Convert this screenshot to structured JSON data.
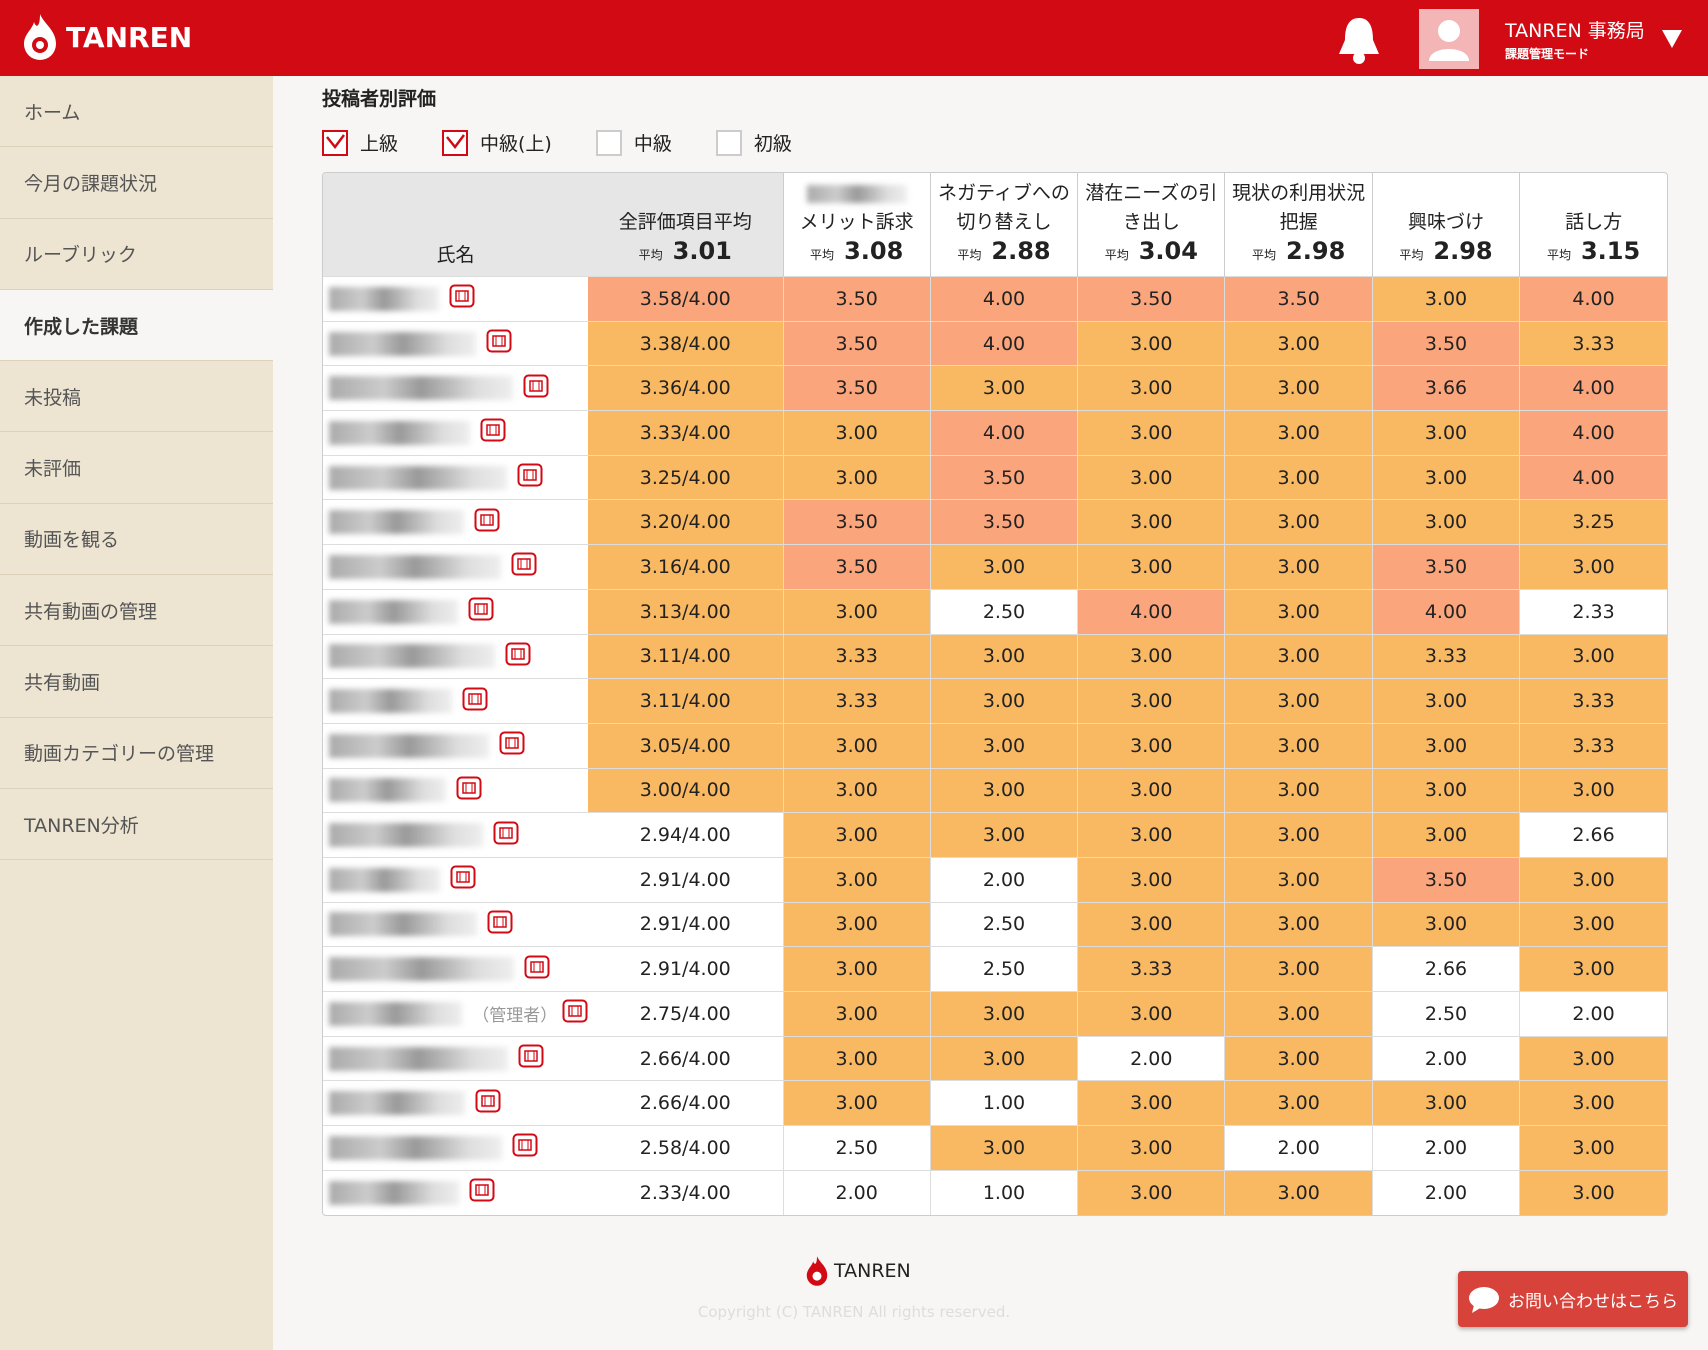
{
  "header": {
    "logo": "TANREN",
    "user_name": "TANREN 事務局",
    "user_mode": "課題管理モード"
  },
  "sidebar": {
    "items": [
      "ホーム",
      "今月の課題状況",
      "ルーブリック",
      "作成した課題",
      "未投稿",
      "未評価",
      "動画を観る",
      "共有動画の管理",
      "共有動画",
      "動画カテゴリーの管理",
      "TANREN分析"
    ],
    "active": 3
  },
  "section_title": "投稿者別評価",
  "filters": [
    {
      "label": "上級",
      "checked": true
    },
    {
      "label": "中級(上)",
      "checked": true
    },
    {
      "label": "中級",
      "checked": false
    },
    {
      "label": "初級",
      "checked": false
    }
  ],
  "table": {
    "name_header": "氏名",
    "avg_label": "平均",
    "overall": {
      "title": "全評価項目平均",
      "avg": "3.01"
    },
    "criteria": [
      {
        "title": "メリット訴求",
        "avg": "3.08"
      },
      {
        "title": "ネガティブへの切り替えし",
        "avg": "2.88"
      },
      {
        "title": "潜在ニーズの引き出し",
        "avg": "3.04"
      },
      {
        "title": "現状の利用状況把握",
        "avg": "2.98"
      },
      {
        "title": "興味づけ",
        "avg": "2.98"
      },
      {
        "title": "話し方",
        "avg": "3.15"
      }
    ],
    "rows": [
      {
        "overall": "3.58/4.00",
        "scores": [
          "3.50",
          "4.00",
          "3.50",
          "3.50",
          "3.00",
          "4.00"
        ]
      },
      {
        "overall": "3.38/4.00",
        "scores": [
          "3.50",
          "4.00",
          "3.00",
          "3.00",
          "3.50",
          "3.33"
        ]
      },
      {
        "overall": "3.36/4.00",
        "scores": [
          "3.50",
          "3.00",
          "3.00",
          "3.00",
          "3.66",
          "4.00"
        ]
      },
      {
        "overall": "3.33/4.00",
        "scores": [
          "3.00",
          "4.00",
          "3.00",
          "3.00",
          "3.00",
          "4.00"
        ]
      },
      {
        "overall": "3.25/4.00",
        "scores": [
          "3.00",
          "3.50",
          "3.00",
          "3.00",
          "3.00",
          "4.00"
        ]
      },
      {
        "overall": "3.20/4.00",
        "scores": [
          "3.50",
          "3.50",
          "3.00",
          "3.00",
          "3.00",
          "3.25"
        ]
      },
      {
        "overall": "3.16/4.00",
        "scores": [
          "3.50",
          "3.00",
          "3.00",
          "3.00",
          "3.50",
          "3.00"
        ]
      },
      {
        "overall": "3.13/4.00",
        "scores": [
          "3.00",
          "2.50",
          "4.00",
          "3.00",
          "4.00",
          "2.33"
        ]
      },
      {
        "overall": "3.11/4.00",
        "scores": [
          "3.33",
          "3.00",
          "3.00",
          "3.00",
          "3.33",
          "3.00"
        ]
      },
      {
        "overall": "3.11/4.00",
        "scores": [
          "3.33",
          "3.00",
          "3.00",
          "3.00",
          "3.00",
          "3.33"
        ]
      },
      {
        "overall": "3.05/4.00",
        "scores": [
          "3.00",
          "3.00",
          "3.00",
          "3.00",
          "3.00",
          "3.33"
        ]
      },
      {
        "overall": "3.00/4.00",
        "scores": [
          "3.00",
          "3.00",
          "3.00",
          "3.00",
          "3.00",
          "3.00"
        ]
      },
      {
        "overall": "2.94/4.00",
        "scores": [
          "3.00",
          "3.00",
          "3.00",
          "3.00",
          "3.00",
          "2.66"
        ]
      },
      {
        "overall": "2.91/4.00",
        "scores": [
          "3.00",
          "2.00",
          "3.00",
          "3.00",
          "3.50",
          "3.00"
        ]
      },
      {
        "overall": "2.91/4.00",
        "scores": [
          "3.00",
          "2.50",
          "3.00",
          "3.00",
          "3.00",
          "3.00"
        ]
      },
      {
        "overall": "2.91/4.00",
        "scores": [
          "3.00",
          "2.50",
          "3.33",
          "3.00",
          "2.66",
          "3.00"
        ]
      },
      {
        "tag": "（管理者）",
        "overall": "2.75/4.00",
        "scores": [
          "3.00",
          "3.00",
          "3.00",
          "3.00",
          "2.50",
          "2.00"
        ]
      },
      {
        "overall": "2.66/4.00",
        "scores": [
          "3.00",
          "3.00",
          "2.00",
          "3.00",
          "2.00",
          "3.00"
        ]
      },
      {
        "overall": "2.66/4.00",
        "scores": [
          "3.00",
          "1.00",
          "3.00",
          "3.00",
          "3.00",
          "3.00"
        ]
      },
      {
        "overall": "2.58/4.00",
        "scores": [
          "2.50",
          "3.00",
          "3.00",
          "2.00",
          "2.00",
          "3.00"
        ]
      },
      {
        "overall": "2.33/4.00",
        "scores": [
          "2.00",
          "1.00",
          "3.00",
          "3.00",
          "2.00",
          "3.00"
        ]
      }
    ]
  },
  "footer": {
    "logo": "TANREN",
    "copyright": "Copyright (C) TANREN All rights reserved.",
    "contact": "お問い合わせはこちら"
  }
}
